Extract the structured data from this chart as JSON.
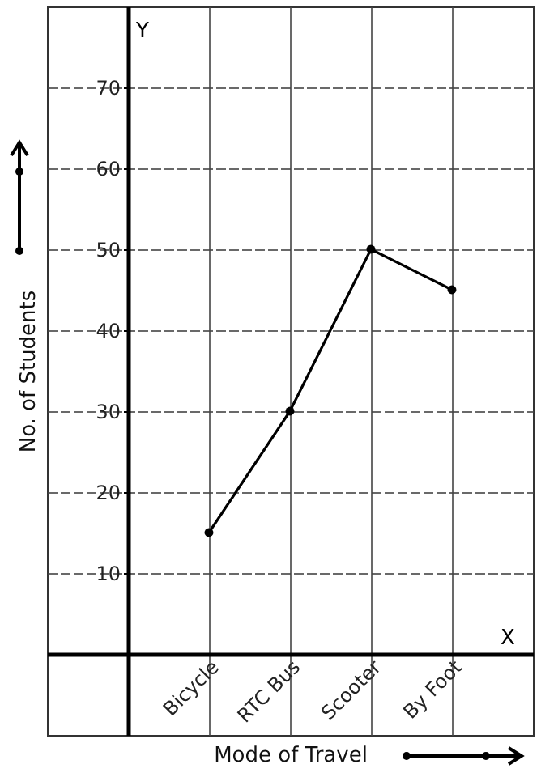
{
  "chart_data": {
    "type": "line",
    "xlabel": "Mode of Travel",
    "ylabel": "No. of Students",
    "categories": [
      "Bicycle",
      "RTC Bus",
      "Scooter",
      "By Foot"
    ],
    "series": [
      {
        "color": "#000000",
        "values": [
          15,
          30,
          50,
          45
        ]
      }
    ],
    "ylim": [
      -10,
      80
    ],
    "yticks": [
      10,
      20,
      30,
      40,
      50,
      60,
      70
    ],
    "annotations": [
      "Y",
      "X"
    ],
    "grid": true,
    "marker": "circle",
    "line_style": "solid"
  }
}
